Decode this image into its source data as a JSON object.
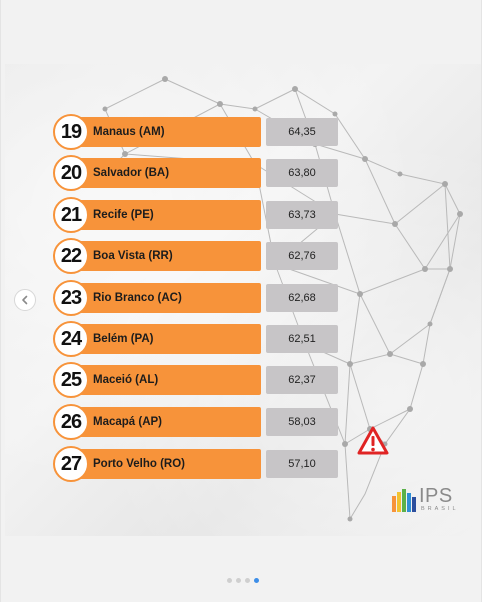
{
  "ranking": [
    {
      "rank": "19",
      "city": "Manaus (AM)",
      "score": "64,35"
    },
    {
      "rank": "20",
      "city": "Salvador (BA)",
      "score": "63,80"
    },
    {
      "rank": "21",
      "city": "Recife (PE)",
      "score": "63,73"
    },
    {
      "rank": "22",
      "city": "Boa Vista (RR)",
      "score": "62,76"
    },
    {
      "rank": "23",
      "city": "Rio Branco (AC)",
      "score": "62,68"
    },
    {
      "rank": "24",
      "city": "Belém (PA)",
      "score": "62,51"
    },
    {
      "rank": "25",
      "city": "Maceió (AL)",
      "score": "62,37"
    },
    {
      "rank": "26",
      "city": "Macapá (AP)",
      "score": "58,03"
    },
    {
      "rank": "27",
      "city": "Porto Velho (RO)",
      "score": "57,10"
    }
  ],
  "logo": {
    "text": "IPS",
    "subtext": "BRASIL"
  },
  "icons": {
    "warning": "warning-triangle-icon",
    "prev": "chevron-left-icon",
    "logo": "ips-brasil-logo"
  },
  "colors": {
    "orange": "#f7933a",
    "score_box": "#c7c5c7",
    "warning_red": "#e02424",
    "active_dot": "#3d8ee8"
  },
  "carousel": {
    "total_slides": 4,
    "active_index": 3
  }
}
